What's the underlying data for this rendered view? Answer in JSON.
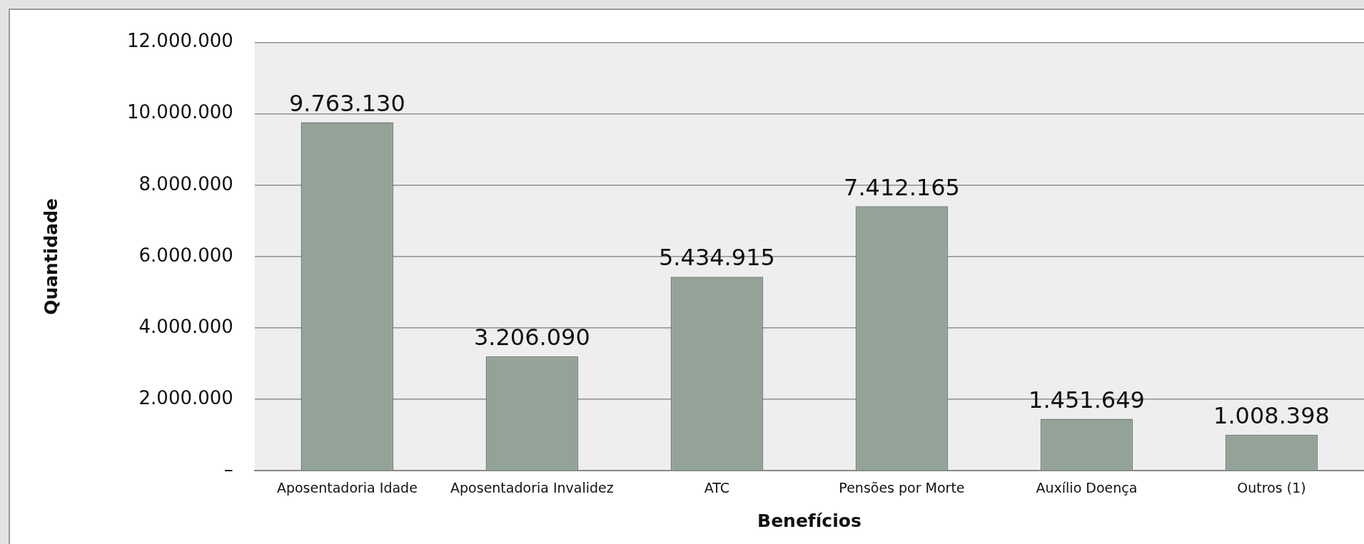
{
  "chart_data": {
    "type": "bar",
    "xlabel": "Benefícios",
    "ylabel": "Quantidade",
    "categories": [
      "Aposentadoria Idade",
      "Aposentadoria Invalidez",
      "ATC",
      "Pensões por Morte",
      "Auxílio Doença",
      "Outros (1)"
    ],
    "values": [
      9763130,
      3206090,
      5434915,
      7412165,
      1451649,
      1008398
    ],
    "value_labels": [
      "9.763.130",
      "3.206.090",
      "5.434.915",
      "7.412.165",
      "1.451.649",
      "1.008.398"
    ],
    "color": "#93a397",
    "ylim": [
      0,
      12000000
    ],
    "yticks": [
      {
        "value": 0,
        "label": "–"
      },
      {
        "value": 2000000,
        "label": "2.000.000"
      },
      {
        "value": 4000000,
        "label": "4.000.000"
      },
      {
        "value": 6000000,
        "label": "6.000.000"
      },
      {
        "value": 8000000,
        "label": "8.000.000"
      },
      {
        "value": 10000000,
        "label": "10.000.000"
      },
      {
        "value": 12000000,
        "label": "12.000.000"
      }
    ],
    "grid": "y",
    "legend": false
  }
}
